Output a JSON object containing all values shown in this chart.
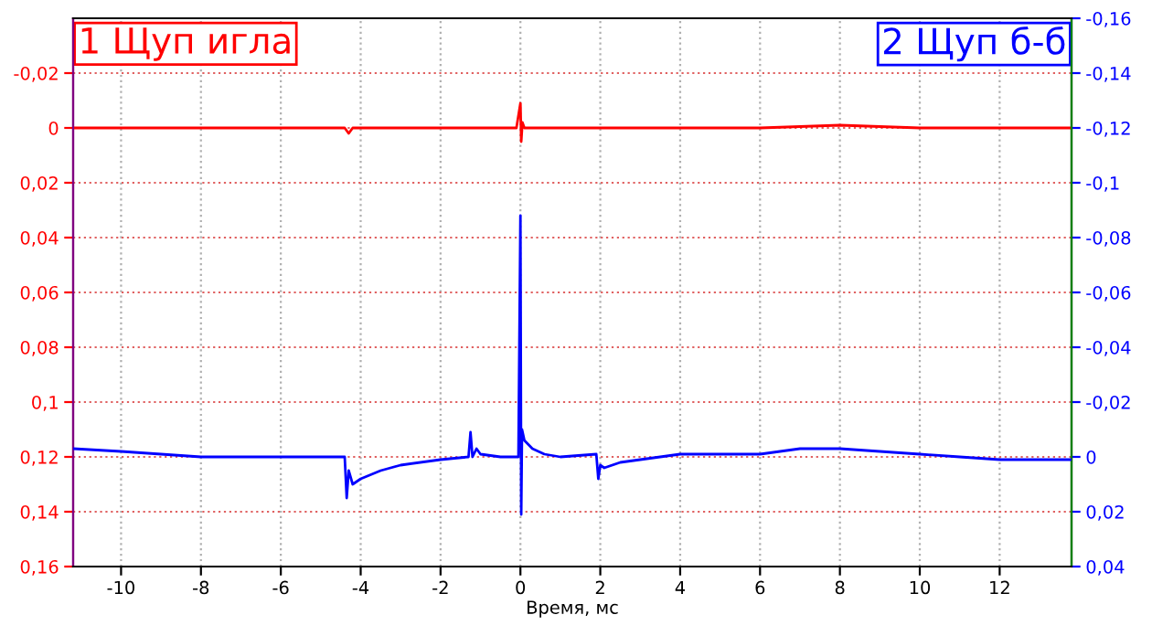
{
  "chart_data": {
    "type": "line",
    "xlabel": "Время, мс",
    "xlim": [
      -11.2,
      13.8
    ],
    "xticks": [
      -10,
      -8,
      -6,
      -4,
      -2,
      0,
      2,
      4,
      6,
      8,
      10,
      12
    ],
    "ylim": [
      0.16,
      -0.04
    ],
    "yticks": [
      {
        "value": -0.02,
        "label": "-0,02"
      },
      0,
      {
        "value": 0.02,
        "label": "0,02"
      },
      {
        "value": 0.04,
        "label": "0,04"
      },
      {
        "value": 0.06,
        "label": "0,06"
      },
      {
        "value": 0.08,
        "label": "0,08"
      },
      {
        "value": 0.1,
        "label": "0,1"
      },
      {
        "value": 0.12,
        "label": "0,12"
      },
      {
        "value": 0.14,
        "label": "0,14"
      },
      {
        "value": 0.16,
        "label": "0,16"
      }
    ],
    "y2lim": [
      0.04,
      -0.16
    ],
    "y2ticks": [
      {
        "value": -0.16,
        "label": "-0,16"
      },
      {
        "value": -0.14,
        "label": "-0,14"
      },
      {
        "value": -0.12,
        "label": "-0,12"
      },
      {
        "value": -0.1,
        "label": "-0,1"
      },
      {
        "value": -0.08,
        "label": "-0,08"
      },
      {
        "value": -0.06,
        "label": "-0,06"
      },
      {
        "value": -0.04,
        "label": "-0,04"
      },
      {
        "value": -0.02,
        "label": "-0,02"
      },
      0,
      {
        "value": 0.02,
        "label": "0,02"
      },
      {
        "value": 0.04,
        "label": "0,04"
      }
    ],
    "grid": true,
    "legend": "top",
    "line_style": "solid",
    "marker": "none",
    "series": [
      {
        "name": "1 Щуп игла",
        "color": "#ff0000",
        "axis": "y",
        "x": [
          -11.2,
          -8,
          -6,
          -4.4,
          -4.3,
          -4.2,
          -2,
          -0.1,
          0,
          0.02,
          0.05,
          0.1,
          2,
          6,
          8,
          10,
          12,
          13.8
        ],
        "values": [
          0,
          0,
          0,
          0,
          0.002,
          0,
          0,
          0,
          -0.009,
          0.005,
          -0.002,
          0,
          0,
          0,
          -0.001,
          0,
          0,
          0
        ]
      },
      {
        "name": "2 Щуп б-б",
        "color": "#0000ff",
        "axis": "y2",
        "x": [
          -11.2,
          -10,
          -9,
          -8,
          -6,
          -4.4,
          -4.35,
          -4.3,
          -4.2,
          -4,
          -3.5,
          -3,
          -2,
          -1.3,
          -1.25,
          -1.2,
          -1.1,
          -1,
          -0.5,
          -0.05,
          0,
          0.02,
          0.04,
          0.1,
          0.3,
          0.6,
          1,
          1.9,
          1.95,
          2,
          2.1,
          2.5,
          3,
          4,
          5,
          6,
          7,
          7.5,
          8,
          9,
          10,
          11,
          12,
          13,
          13.8
        ],
        "values": [
          -0.003,
          -0.002,
          -0.001,
          0,
          0,
          0,
          0.015,
          0.005,
          0.01,
          0.008,
          0.005,
          0.003,
          0.001,
          0,
          -0.009,
          0,
          -0.003,
          -0.001,
          0,
          0,
          -0.088,
          0.021,
          -0.01,
          -0.006,
          -0.003,
          -0.001,
          0,
          -0.001,
          0.008,
          0.003,
          0.004,
          0.002,
          0.001,
          -0.001,
          -0.001,
          -0.001,
          -0.003,
          -0.003,
          -0.003,
          -0.002,
          -0.001,
          0,
          0.001,
          0.001,
          0.001
        ]
      }
    ]
  }
}
